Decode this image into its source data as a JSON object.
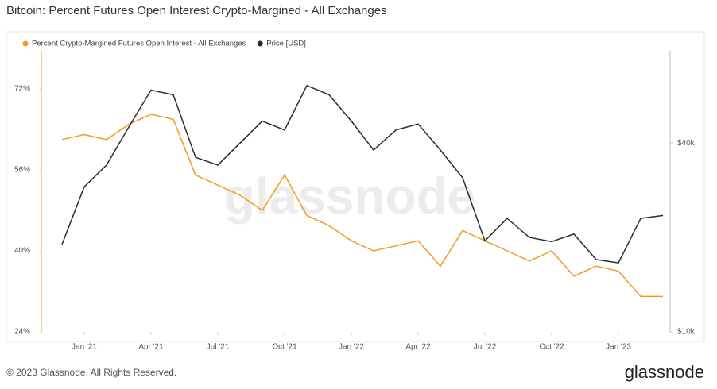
{
  "chart_data": {
    "type": "line",
    "title": "Bitcoin: Percent Futures Open Interest Crypto-Margined - All Exchanges",
    "watermark": "glassnode",
    "x": [
      "2020-12",
      "2021-01",
      "2021-02",
      "2021-03",
      "2021-04",
      "2021-05",
      "2021-06",
      "2021-07",
      "2021-08",
      "2021-09",
      "2021-10",
      "2021-11",
      "2021-12",
      "2022-01",
      "2022-02",
      "2022-03",
      "2022-04",
      "2022-05",
      "2022-06",
      "2022-07",
      "2022-08",
      "2022-09",
      "2022-10",
      "2022-11",
      "2022-12",
      "2023-01",
      "2023-02",
      "2023-03"
    ],
    "xlim": [
      "2020-11",
      "2023-03"
    ],
    "xticks": [
      {
        "value": "2021-01",
        "label": "Jan '21"
      },
      {
        "value": "2021-04",
        "label": "Apr '21"
      },
      {
        "value": "2021-07",
        "label": "Jul '21"
      },
      {
        "value": "2021-10",
        "label": "Oct '21"
      },
      {
        "value": "2022-01",
        "label": "Jan '22"
      },
      {
        "value": "2022-04",
        "label": "Apr '22"
      },
      {
        "value": "2022-07",
        "label": "Jul '22"
      },
      {
        "value": "2022-10",
        "label": "Oct '22"
      },
      {
        "value": "2023-01",
        "label": "Jan '23"
      }
    ],
    "ylim": [
      24,
      83
    ],
    "yticks": [
      {
        "value": 24,
        "label": "24%"
      },
      {
        "value": 40,
        "label": "40%"
      },
      {
        "value": 56,
        "label": "56%"
      },
      {
        "value": 72,
        "label": "72%"
      }
    ],
    "y2lim": [
      10000,
      89500
    ],
    "y2_log": true,
    "y2ticks": [
      {
        "value": 10000,
        "label": "$10k"
      },
      {
        "value": 40000,
        "label": "$40k"
      }
    ],
    "grid": false,
    "series": [
      {
        "name": "Percent Crypto-Margined Futures Open Interest - All Exchanges",
        "color": "#f39a1f",
        "values": [
          62,
          63,
          62,
          65,
          67,
          66,
          55,
          53,
          51,
          48,
          55,
          47,
          45,
          42,
          40,
          41,
          42,
          37,
          44,
          42,
          40,
          38,
          40,
          35,
          37,
          36,
          31,
          31
        ]
      },
      {
        "name": "Price [USD]",
        "color": "#2b2b2b",
        "axis": "y2",
        "values": [
          19000,
          29000,
          34000,
          45000,
          59000,
          57000,
          36000,
          34000,
          40000,
          47000,
          44000,
          61000,
          57000,
          47000,
          38000,
          44000,
          46000,
          38000,
          31000,
          19500,
          23000,
          20000,
          19400,
          20500,
          17000,
          16600,
          23000,
          23500
        ]
      }
    ]
  },
  "footer": {
    "copyright": "© 2023 Glassnode. All Rights Reserved.",
    "logo": "glassnode"
  }
}
